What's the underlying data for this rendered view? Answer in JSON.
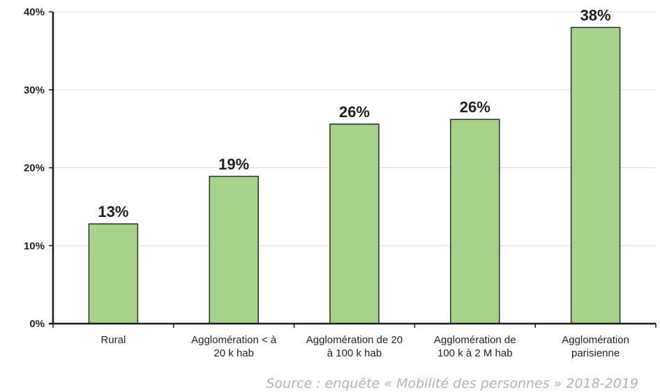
{
  "chart_data": {
    "type": "bar",
    "categories": [
      [
        "Rural"
      ],
      [
        "Agglomération < à",
        "20 k hab"
      ],
      [
        "Agglomération de 20",
        "à 100 k hab"
      ],
      [
        "Agglomération de",
        "100 k à 2 M hab"
      ],
      [
        "Agglomération",
        "parisienne"
      ]
    ],
    "values": [
      12.8,
      18.9,
      25.6,
      26.2,
      38.0
    ],
    "data_labels": [
      "13%",
      "19%",
      "26%",
      "26%",
      "38%"
    ],
    "yticks": [
      0,
      10,
      20,
      30,
      40
    ],
    "ytick_labels": [
      "0%",
      "10%",
      "20%",
      "30%",
      "40%"
    ],
    "ylim": [
      0,
      40
    ],
    "grid": true,
    "title": "",
    "xlabel": "",
    "ylabel": "",
    "colors": {
      "bar_fill": "#a6d38a",
      "bar_stroke": "#2e2e2e",
      "grid": "#d9d9d9",
      "axis": "#1a1a1a"
    }
  },
  "source": "Source : enquête « Mobilité des personnes » 2018-2019"
}
